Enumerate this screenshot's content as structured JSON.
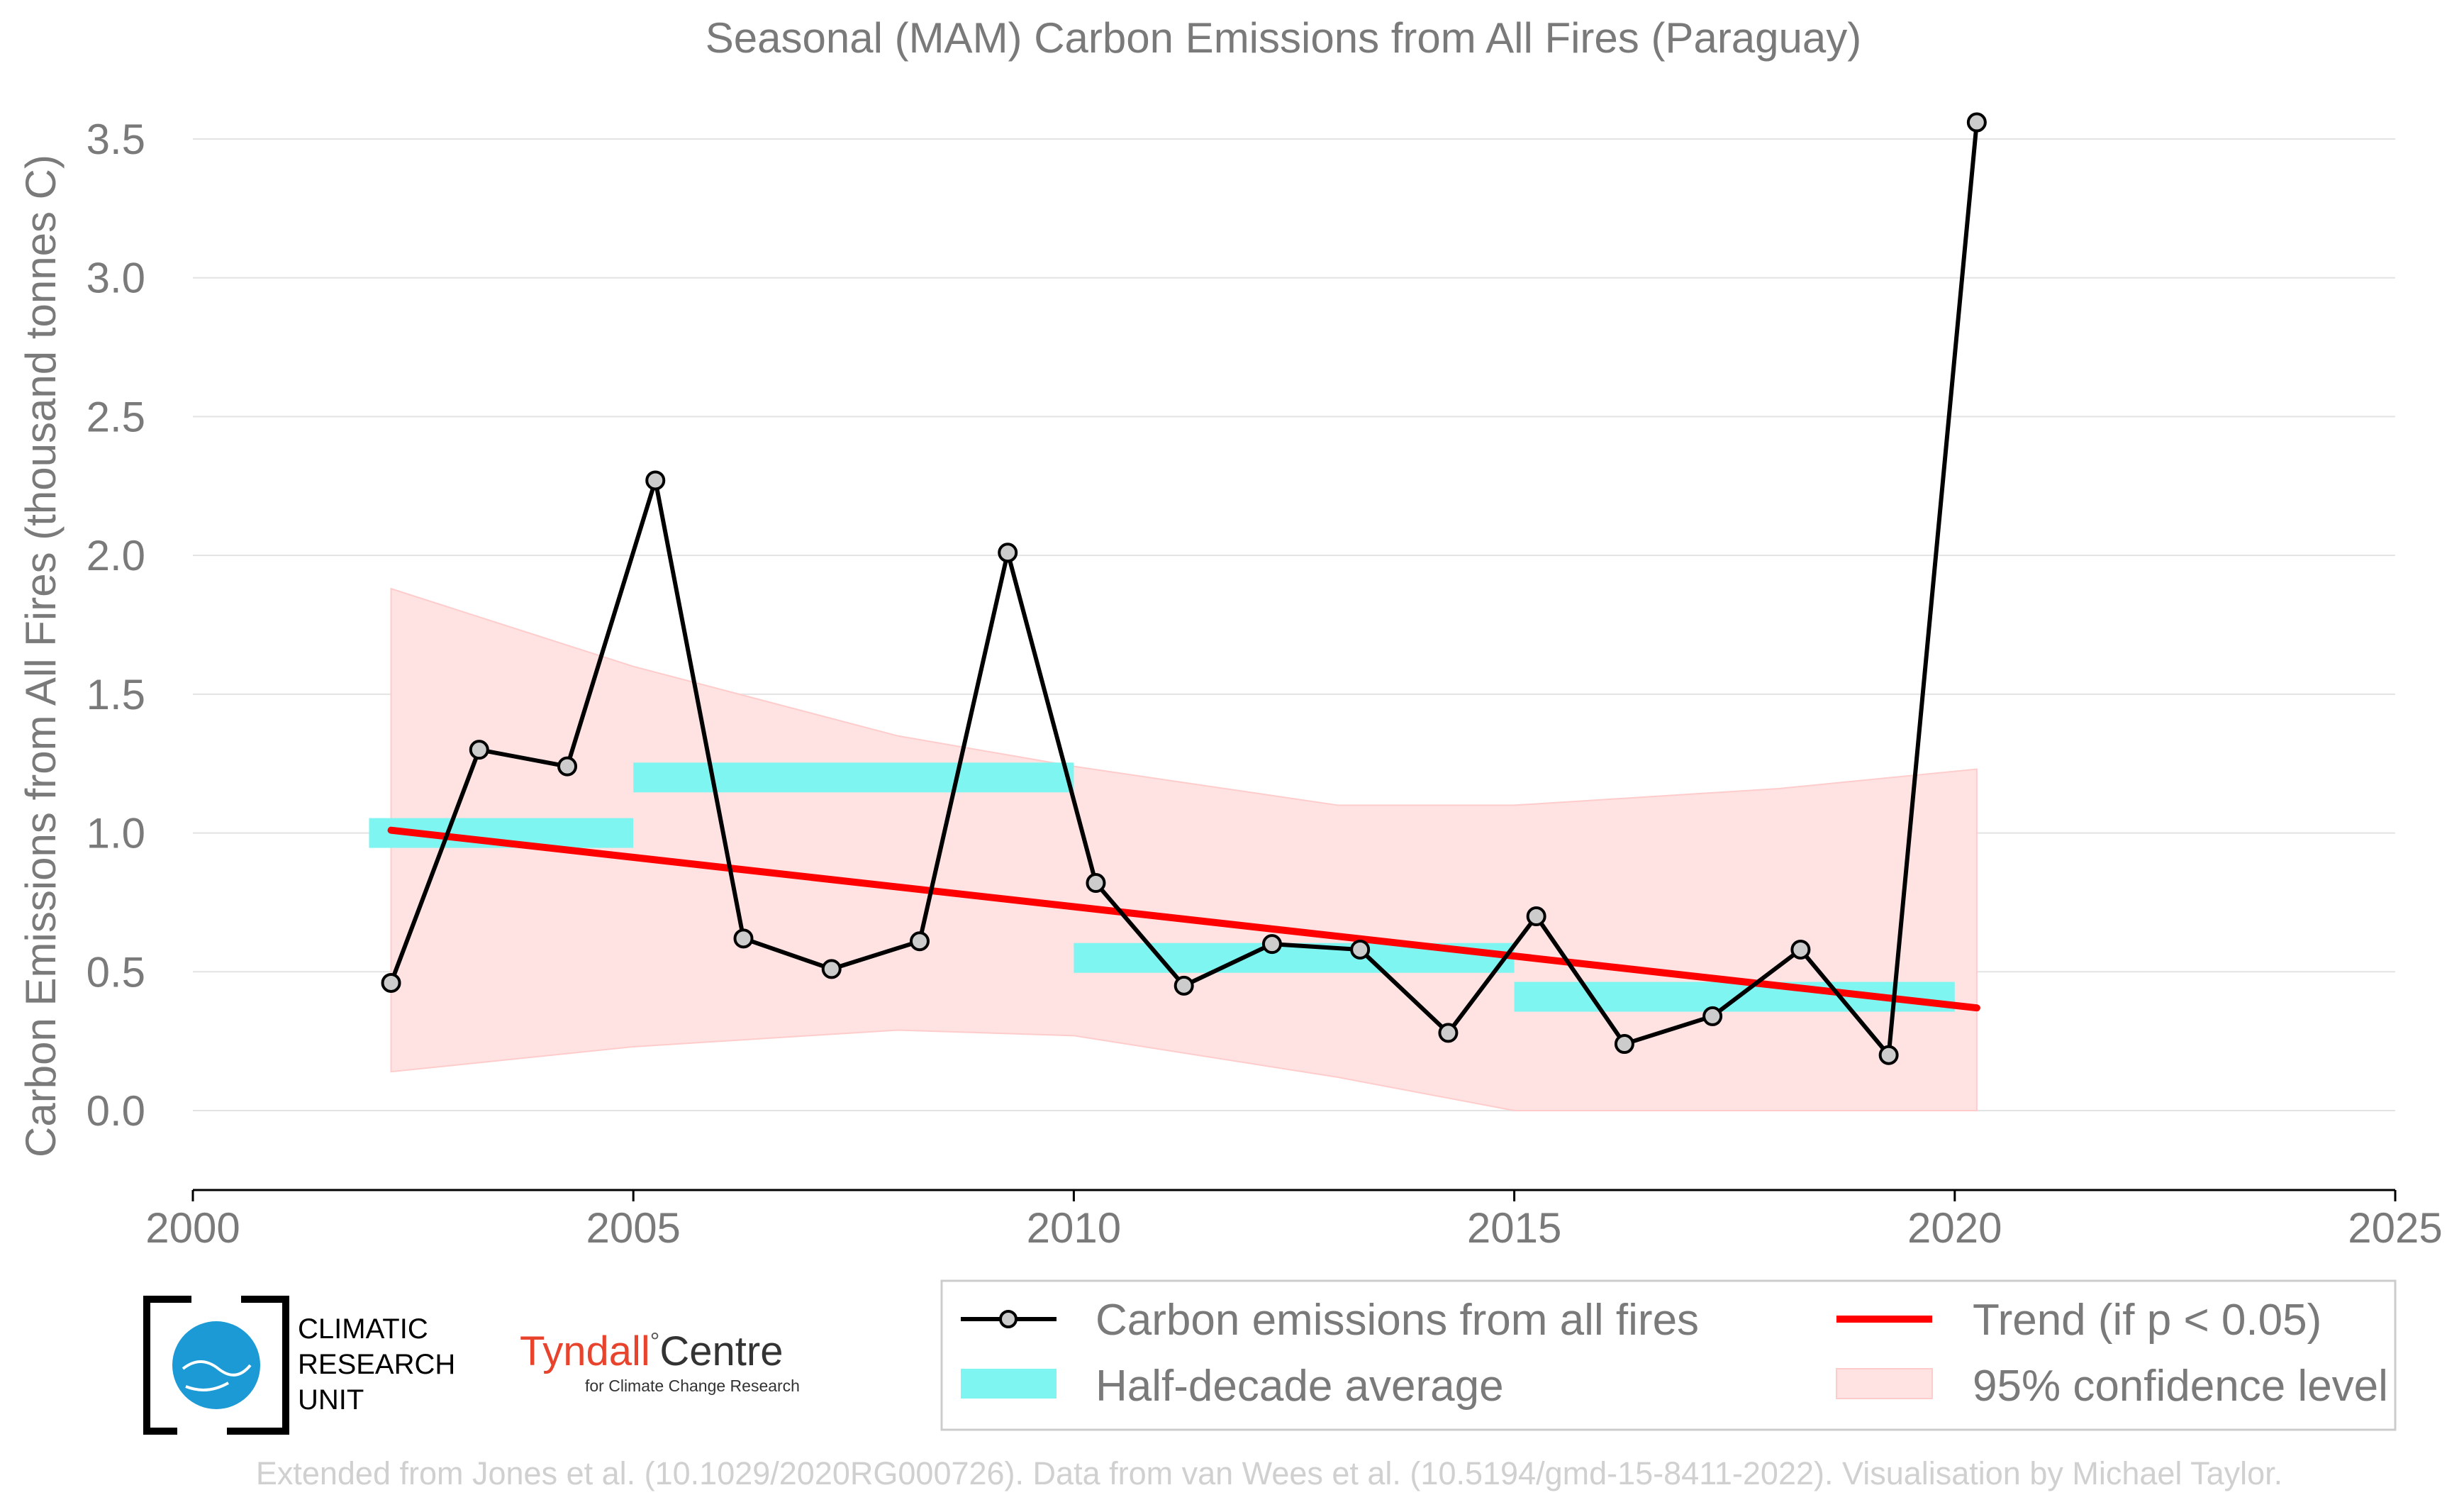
{
  "chart_data": {
    "type": "line",
    "title": "Seasonal (MAM) Carbon Emissions from All Fires (Paraguay)",
    "xlabel": "",
    "ylabel": "Carbon Emissions from All Fires (thousand tonnes C)",
    "xlim": [
      2000,
      2025
    ],
    "ylim": [
      -0.28,
      3.6
    ],
    "xticks": [
      "2000",
      "2005",
      "2010",
      "2015",
      "2020",
      "2025"
    ],
    "yticks": [
      "0.0",
      "0.5",
      "1.0",
      "1.5",
      "2.0",
      "2.5",
      "3.0",
      "3.5"
    ],
    "grid": "horizontal",
    "legend_position": "bottom-right",
    "series": [
      {
        "name": "Carbon emissions from all fires",
        "color": "#000000",
        "marker_fill": "#cccccc",
        "x": [
          2002.25,
          2003.25,
          2004.25,
          2005.25,
          2006.25,
          2007.25,
          2008.25,
          2009.25,
          2010.25,
          2011.25,
          2012.25,
          2013.25,
          2014.25,
          2015.25,
          2016.25,
          2017.25,
          2018.25,
          2019.25,
          2020.25
        ],
        "y": [
          0.46,
          1.3,
          1.24,
          2.27,
          0.62,
          0.51,
          0.61,
          2.01,
          0.82,
          0.45,
          0.6,
          0.58,
          0.28,
          0.7,
          0.24,
          0.34,
          0.58,
          0.2,
          3.56
        ]
      },
      {
        "name": "Half-decade average",
        "color": "#7ff5f2",
        "segments": [
          {
            "x0": 2002,
            "x1": 2005,
            "y": 1.0
          },
          {
            "x0": 2005,
            "x1": 2010,
            "y": 1.2
          },
          {
            "x0": 2010,
            "x1": 2015,
            "y": 0.55
          },
          {
            "x0": 2015,
            "x1": 2020,
            "y": 0.41
          }
        ]
      },
      {
        "name": "Trend (if p < 0.05)",
        "color": "#ff0000",
        "x": [
          2002.25,
          2020.25
        ],
        "y": [
          1.01,
          0.37
        ]
      },
      {
        "name": "95% confidence level",
        "color": "#ffe2e2",
        "x": [
          2002.25,
          2005,
          2008,
          2010,
          2013,
          2015,
          2018,
          2020.25
        ],
        "upper": [
          1.88,
          1.6,
          1.35,
          1.24,
          1.1,
          1.1,
          1.16,
          1.23
        ],
        "lower": [
          0.14,
          0.23,
          0.29,
          0.27,
          0.12,
          0.0,
          0.0,
          0.0
        ]
      }
    ]
  },
  "footer": "Extended from Jones et al. (10.1029/2020RG000726). Data from van Wees et al. (10.5194/gmd-15-8411-2022). Visualisation by Michael Taylor.",
  "logos": {
    "cru_lines": [
      "CLIMATIC",
      "RESEARCH",
      "UNIT"
    ],
    "tyndall_main": "Tyndall",
    "tyndall_degree": "°",
    "tyndall_centre": "Centre",
    "tyndall_sub": "for Climate Change Research"
  }
}
